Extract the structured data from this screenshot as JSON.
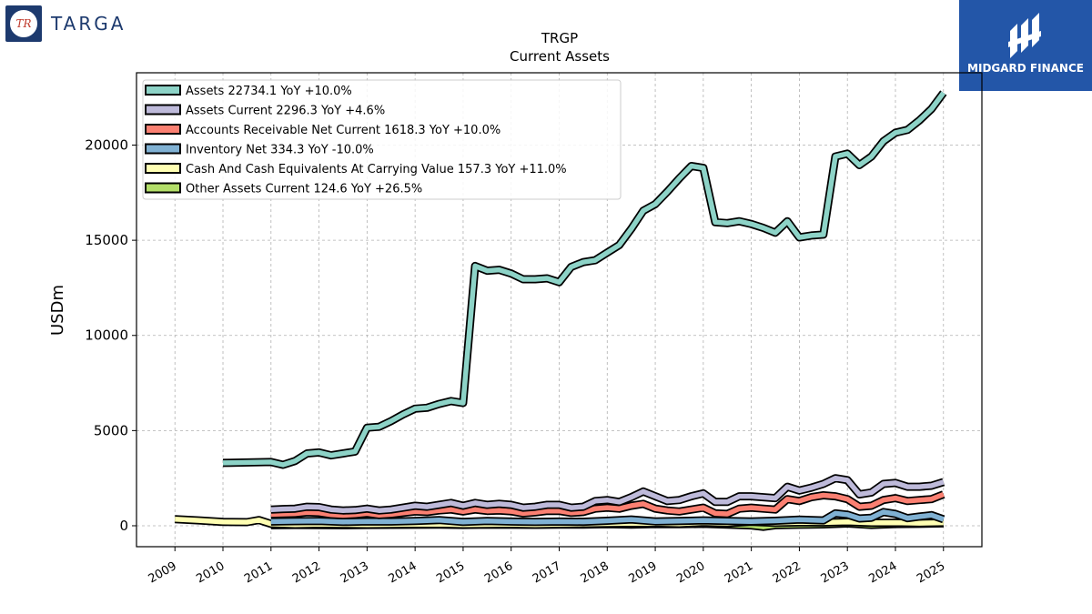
{
  "header": {
    "company_logo_text": "TARGA",
    "company_logo_initials": "TR",
    "brand_text": "MIDGARD FINANCE"
  },
  "colors": {
    "assets": "#8dd3c7",
    "assets_current": "#bebada",
    "accounts_receivable": "#fb8072",
    "inventory": "#80b1d3",
    "cash": "#ffffb3",
    "other_assets": "#b3de69",
    "brand_blue": "#2356a8"
  },
  "chart_data": {
    "type": "line",
    "title": "TRGP",
    "subtitle": "Current  Assets",
    "ylabel": "USDm",
    "xlabel": "",
    "ylim": [
      -1100,
      23800
    ],
    "xlim": [
      2008.2,
      2025.8
    ],
    "yticks": [
      0,
      5000,
      10000,
      15000,
      20000
    ],
    "xticks": [
      "2009",
      "2010",
      "2011",
      "2012",
      "2013",
      "2014",
      "2015",
      "2016",
      "2017",
      "2018",
      "2019",
      "2020",
      "2021",
      "2022",
      "2023",
      "2024",
      "2025"
    ],
    "grid": true,
    "legend_position": "top-left",
    "series": [
      {
        "name": "Assets",
        "legend": "Assets  22734.1 YoY +10.0%",
        "color_key": "assets",
        "x": [
          2010.0,
          2011.0,
          2011.25,
          2011.5,
          2011.75,
          2012.0,
          2012.25,
          2012.5,
          2012.75,
          2013.0,
          2013.25,
          2013.5,
          2013.75,
          2014.0,
          2014.25,
          2014.5,
          2014.75,
          2015.0,
          2015.25,
          2015.5,
          2015.75,
          2016.0,
          2016.25,
          2016.5,
          2016.75,
          2017.0,
          2017.25,
          2017.5,
          2017.75,
          2018.0,
          2018.25,
          2018.5,
          2018.75,
          2019.0,
          2019.25,
          2019.5,
          2019.75,
          2020.0,
          2020.25,
          2020.5,
          2020.75,
          2021.0,
          2021.25,
          2021.5,
          2021.75,
          2022.0,
          2022.25,
          2022.5,
          2022.75,
          2023.0,
          2023.25,
          2023.5,
          2023.75,
          2024.0,
          2024.25,
          2024.5,
          2024.75,
          2025.0
        ],
        "y": [
          3300,
          3350,
          3200,
          3400,
          3800,
          3850,
          3700,
          3800,
          3900,
          5150,
          5200,
          5500,
          5850,
          6150,
          6200,
          6400,
          6550,
          6450,
          13650,
          13400,
          13450,
          13250,
          12950,
          12950,
          13000,
          12800,
          13600,
          13850,
          13950,
          14350,
          14750,
          15600,
          16550,
          16900,
          17550,
          18250,
          18900,
          18800,
          15950,
          15900,
          16000,
          15850,
          15650,
          15400,
          16000,
          15150,
          15250,
          15300,
          19400,
          19550,
          18950,
          19400,
          20200,
          20650,
          20800,
          21300,
          21900,
          22750
        ]
      },
      {
        "name": "Assets Current",
        "legend": "Assets Current  2296.3 YoY +4.6%",
        "color_key": "assets_current",
        "x": [
          2011.0,
          2011.25,
          2011.5,
          2011.75,
          2012.0,
          2012.25,
          2012.5,
          2012.75,
          2013.0,
          2013.25,
          2013.5,
          2013.75,
          2014.0,
          2014.25,
          2014.5,
          2014.75,
          2015.0,
          2015.25,
          2015.5,
          2015.75,
          2016.0,
          2016.25,
          2016.5,
          2016.75,
          2017.0,
          2017.25,
          2017.5,
          2017.75,
          2018.0,
          2018.25,
          2018.5,
          2018.75,
          2019.0,
          2019.25,
          2019.5,
          2019.75,
          2020.0,
          2020.25,
          2020.5,
          2020.75,
          2021.0,
          2021.25,
          2021.5,
          2021.75,
          2022.0,
          2022.25,
          2022.5,
          2022.75,
          2023.0,
          2023.25,
          2023.5,
          2023.75,
          2024.0,
          2024.25,
          2024.5,
          2024.75,
          2025.0
        ],
        "y": [
          850,
          880,
          900,
          1000,
          980,
          850,
          800,
          820,
          900,
          800,
          850,
          950,
          1050,
          1000,
          1100,
          1200,
          1050,
          1200,
          1100,
          1150,
          1100,
          950,
          1000,
          1100,
          1100,
          950,
          1000,
          1300,
          1350,
          1250,
          1500,
          1800,
          1550,
          1300,
          1350,
          1550,
          1700,
          1250,
          1250,
          1550,
          1550,
          1500,
          1450,
          2050,
          1850,
          2000,
          2200,
          2500,
          2400,
          1650,
          1750,
          2200,
          2250,
          2050,
          2050,
          2100,
          2300
        ]
      },
      {
        "name": "Accounts Receivable Net Current",
        "legend": "Accounts Receivable Net Current  1618.3 YoY +10.0%",
        "color_key": "accounts_receivable",
        "x": [
          2011.0,
          2011.25,
          2011.5,
          2011.75,
          2012.0,
          2012.25,
          2012.5,
          2012.75,
          2013.0,
          2013.25,
          2013.5,
          2013.75,
          2014.0,
          2014.25,
          2014.5,
          2014.75,
          2015.0,
          2015.25,
          2015.5,
          2015.75,
          2016.0,
          2016.25,
          2016.5,
          2016.75,
          2017.0,
          2017.25,
          2017.5,
          2017.75,
          2018.0,
          2018.25,
          2018.5,
          2018.75,
          2019.0,
          2019.25,
          2019.5,
          2019.75,
          2020.0,
          2020.25,
          2020.5,
          2020.75,
          2021.0,
          2021.25,
          2021.5,
          2021.75,
          2022.0,
          2022.25,
          2022.5,
          2022.75,
          2023.0,
          2023.25,
          2023.5,
          2023.75,
          2024.0,
          2024.25,
          2024.5,
          2024.75,
          2025.0
        ],
        "y": [
          600,
          620,
          640,
          700,
          680,
          580,
          550,
          580,
          650,
          560,
          600,
          680,
          750,
          720,
          800,
          850,
          750,
          850,
          780,
          800,
          760,
          650,
          700,
          780,
          780,
          680,
          720,
          900,
          950,
          900,
          1050,
          1150,
          900,
          800,
          750,
          850,
          950,
          650,
          620,
          900,
          950,
          900,
          850,
          1400,
          1300,
          1500,
          1600,
          1550,
          1400,
          1000,
          1050,
          1350,
          1450,
          1300,
          1350,
          1400,
          1650
        ]
      },
      {
        "name": "Inventory Net",
        "legend": "Inventory Net  334.3 YoY -10.0%",
        "color_key": "inventory",
        "x": [
          2011.0,
          2011.5,
          2012.0,
          2012.5,
          2013.0,
          2013.5,
          2014.0,
          2014.5,
          2015.0,
          2015.5,
          2016.0,
          2016.5,
          2017.0,
          2017.5,
          2018.0,
          2018.5,
          2019.0,
          2019.5,
          2020.0,
          2020.5,
          2021.0,
          2021.5,
          2022.0,
          2022.5,
          2022.75,
          2023.0,
          2023.25,
          2023.5,
          2023.75,
          2024.0,
          2024.25,
          2024.5,
          2024.75,
          2025.0
        ],
        "y": [
          220,
          240,
          250,
          200,
          230,
          220,
          250,
          300,
          200,
          250,
          220,
          200,
          220,
          210,
          260,
          330,
          230,
          250,
          280,
          250,
          230,
          260,
          320,
          280,
          650,
          580,
          380,
          420,
          720,
          620,
          400,
          480,
          560,
          340
        ]
      },
      {
        "name": "Cash And Cash Equivalents At Carrying Value",
        "legend": "Cash And Cash Equivalents At Carrying Value  157.3 YoY +11.0%",
        "color_key": "cash",
        "x": [
          2009.0,
          2009.5,
          2010.0,
          2010.5,
          2010.75,
          2011.0,
          2011.5,
          2012.0,
          2012.5,
          2013.0,
          2013.5,
          2014.0,
          2014.5,
          2015.0,
          2015.5,
          2016.0,
          2016.5,
          2017.0,
          2017.5,
          2018.0,
          2018.5,
          2019.0,
          2019.5,
          2020.0,
          2020.5,
          2021.0,
          2021.5,
          2022.0,
          2022.5,
          2023.0,
          2023.5,
          2024.0,
          2024.5,
          2025.0
        ],
        "y": [
          350,
          280,
          200,
          190,
          300,
          100,
          60,
          80,
          70,
          60,
          70,
          80,
          90,
          60,
          70,
          80,
          60,
          80,
          100,
          120,
          130,
          140,
          110,
          170,
          130,
          210,
          150,
          180,
          170,
          200,
          150,
          160,
          140,
          160
        ]
      },
      {
        "name": "Other Assets Current",
        "legend": "Other Assets Current  124.6 YoY +26.5%",
        "color_key": "other_assets",
        "x": [
          2011.0,
          2011.5,
          2012.0,
          2012.5,
          2013.0,
          2013.5,
          2014.0,
          2014.5,
          2015.0,
          2015.5,
          2016.0,
          2016.5,
          2017.0,
          2017.5,
          2018.0,
          2018.5,
          2019.0,
          2019.5,
          2020.0,
          2020.5,
          2021.0,
          2021.25,
          2021.5,
          2022.0,
          2022.5,
          2023.0,
          2023.5,
          2024.0,
          2024.5,
          2025.0
        ],
        "y": [
          30,
          40,
          35,
          30,
          40,
          45,
          50,
          55,
          40,
          60,
          50,
          45,
          60,
          55,
          80,
          60,
          90,
          80,
          100,
          60,
          20,
          -60,
          30,
          50,
          70,
          120,
          40,
          90,
          100,
          125
        ]
      }
    ]
  }
}
